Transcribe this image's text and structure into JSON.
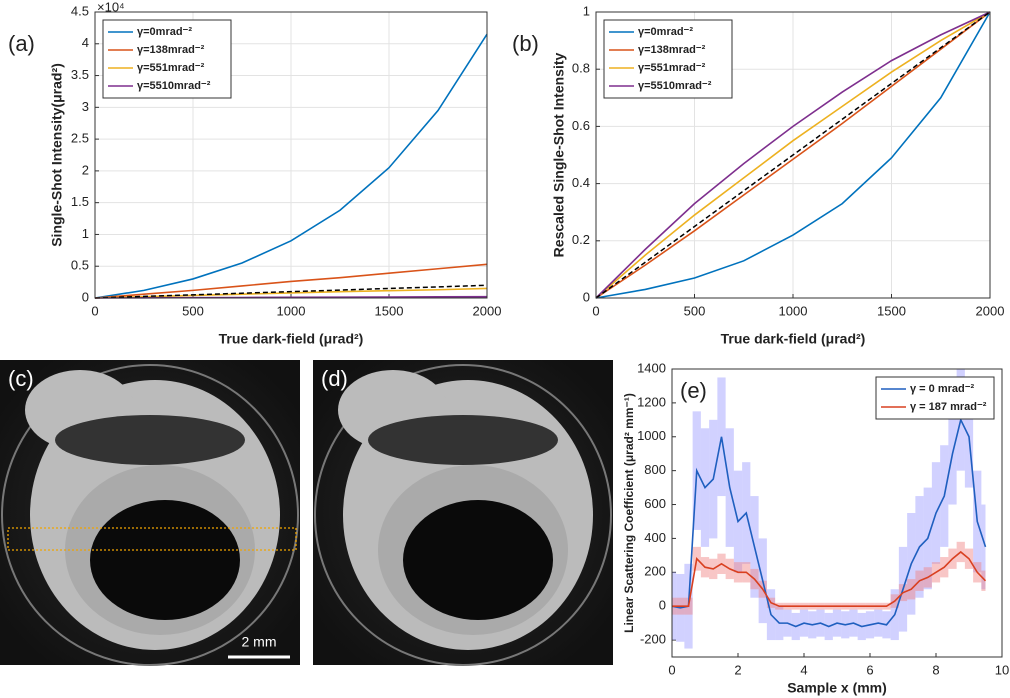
{
  "chart_data": [
    {
      "type": "line",
      "panel_label": "(a)",
      "xlabel": "True dark-field (μrad²)",
      "ylabel": "Single-Shot Intensity(μrad²)",
      "y_multiplier": "×10⁴",
      "x": [
        0,
        250,
        500,
        750,
        1000,
        1250,
        1500,
        1750,
        2000
      ],
      "xlim": [
        0,
        2000
      ],
      "xticks": [
        0,
        500,
        1000,
        1500,
        2000
      ],
      "ylim": [
        0,
        4.5
      ],
      "yticks": [
        0,
        0.5,
        1,
        1.5,
        2,
        2.5,
        3,
        3.5,
        4,
        4.5
      ],
      "grid": true,
      "legend_loc": "upper left",
      "series": [
        {
          "name": "γ=0mrad⁻²",
          "color": "#0072BD",
          "values": [
            0,
            0.12,
            0.3,
            0.55,
            0.9,
            1.38,
            2.05,
            2.95,
            4.15
          ]
        },
        {
          "name": "γ=138mrad⁻²",
          "color": "#D95319",
          "values": [
            0,
            0.06,
            0.12,
            0.19,
            0.26,
            0.32,
            0.39,
            0.46,
            0.53
          ]
        },
        {
          "name": "γ=551mrad⁻²",
          "color": "#EDB120",
          "values": [
            0,
            0.02,
            0.04,
            0.06,
            0.08,
            0.1,
            0.115,
            0.13,
            0.15
          ]
        },
        {
          "name": "γ=5510mrad⁻²",
          "color": "#7E2F8E",
          "values": [
            0,
            0.003,
            0.006,
            0.008,
            0.011,
            0.013,
            0.015,
            0.018,
            0.02
          ]
        },
        {
          "color": "#000000",
          "dashed": true,
          "values": [
            0,
            0.025,
            0.05,
            0.075,
            0.1,
            0.125,
            0.15,
            0.175,
            0.2
          ]
        }
      ]
    },
    {
      "type": "line",
      "panel_label": "(b)",
      "xlabel": "True dark-field (μrad²)",
      "ylabel": "Rescaled Single-Shot Intensity",
      "x": [
        0,
        250,
        500,
        750,
        1000,
        1250,
        1500,
        1750,
        2000
      ],
      "xlim": [
        0,
        2000
      ],
      "xticks": [
        0,
        500,
        1000,
        1500,
        2000
      ],
      "ylim": [
        0,
        1
      ],
      "yticks": [
        0,
        0.2,
        0.4,
        0.6,
        0.8,
        1
      ],
      "grid": true,
      "legend_loc": "upper left",
      "series": [
        {
          "name": "γ=0mrad⁻²",
          "color": "#0072BD",
          "values": [
            0,
            0.03,
            0.07,
            0.13,
            0.22,
            0.33,
            0.49,
            0.7,
            1
          ]
        },
        {
          "name": "γ=138mrad⁻²",
          "color": "#D95319",
          "values": [
            0,
            0.115,
            0.235,
            0.36,
            0.485,
            0.61,
            0.74,
            0.87,
            1
          ]
        },
        {
          "name": "γ=551mrad⁻²",
          "color": "#EDB120",
          "values": [
            0,
            0.15,
            0.29,
            0.42,
            0.55,
            0.67,
            0.79,
            0.9,
            1
          ]
        },
        {
          "name": "γ=5510mrad⁻²",
          "color": "#7E2F8E",
          "values": [
            0,
            0.17,
            0.33,
            0.47,
            0.6,
            0.72,
            0.83,
            0.92,
            1
          ]
        },
        {
          "color": "#000000",
          "dashed": true,
          "values": [
            0,
            0.125,
            0.25,
            0.375,
            0.5,
            0.625,
            0.75,
            0.875,
            1
          ]
        }
      ]
    },
    {
      "type": "line",
      "panel_label": "(e)",
      "xlabel": "Sample x (mm)",
      "ylabel": "Linear Scattering Coefficient (μrad² mm⁻¹)",
      "x": [
        0,
        0.25,
        0.5,
        0.75,
        1,
        1.25,
        1.5,
        1.75,
        2,
        2.25,
        2.5,
        2.75,
        3,
        3.25,
        3.5,
        3.75,
        4,
        4.25,
        4.5,
        4.75,
        5,
        5.25,
        5.5,
        5.75,
        6,
        6.25,
        6.5,
        6.75,
        7,
        7.25,
        7.5,
        7.75,
        8,
        8.25,
        8.5,
        8.75,
        9,
        9.25,
        9.5
      ],
      "xlim": [
        0,
        10
      ],
      "xticks": [
        0,
        2,
        4,
        6,
        8,
        10
      ],
      "ylim": [
        -300,
        1400
      ],
      "yticks": [
        -200,
        0,
        200,
        400,
        600,
        800,
        1000,
        1200,
        1400
      ],
      "grid": false,
      "legend_loc": "upper right",
      "series": [
        {
          "name": "γ = 0 mrad⁻²",
          "color": "#1f5fbf",
          "band_color": "#9999ff",
          "values": [
            0,
            -10,
            0,
            800,
            700,
            750,
            1000,
            700,
            500,
            550,
            350,
            150,
            -50,
            -100,
            -100,
            -120,
            -100,
            -110,
            -100,
            -120,
            -100,
            -110,
            -100,
            -120,
            -110,
            -100,
            -110,
            -50,
            100,
            250,
            350,
            400,
            550,
            650,
            900,
            1100,
            1000,
            500,
            350
          ],
          "errors": [
            200,
            200,
            250,
            350,
            350,
            350,
            350,
            350,
            300,
            300,
            300,
            250,
            150,
            100,
            80,
            80,
            80,
            80,
            80,
            80,
            80,
            80,
            80,
            80,
            80,
            80,
            80,
            150,
            250,
            300,
            300,
            300,
            300,
            300,
            300,
            300,
            300,
            300,
            250
          ]
        },
        {
          "name": "γ = 187 mrad⁻²",
          "color": "#d94020",
          "band_color": "#f08080",
          "values": [
            0,
            0,
            0,
            280,
            230,
            220,
            250,
            220,
            200,
            200,
            160,
            100,
            20,
            0,
            0,
            0,
            0,
            0,
            0,
            0,
            0,
            0,
            0,
            0,
            0,
            0,
            0,
            30,
            80,
            100,
            150,
            170,
            200,
            230,
            280,
            320,
            280,
            200,
            150
          ],
          "errors": [
            50,
            50,
            50,
            70,
            60,
            60,
            60,
            60,
            60,
            60,
            60,
            50,
            30,
            20,
            20,
            20,
            20,
            20,
            20,
            20,
            20,
            20,
            20,
            20,
            20,
            20,
            20,
            40,
            50,
            60,
            60,
            60,
            60,
            60,
            60,
            60,
            60,
            60,
            60
          ]
        }
      ]
    }
  ],
  "images": [
    {
      "panel_label": "(c)",
      "scale_bar": "2 mm"
    },
    {
      "panel_label": "(d)"
    }
  ]
}
